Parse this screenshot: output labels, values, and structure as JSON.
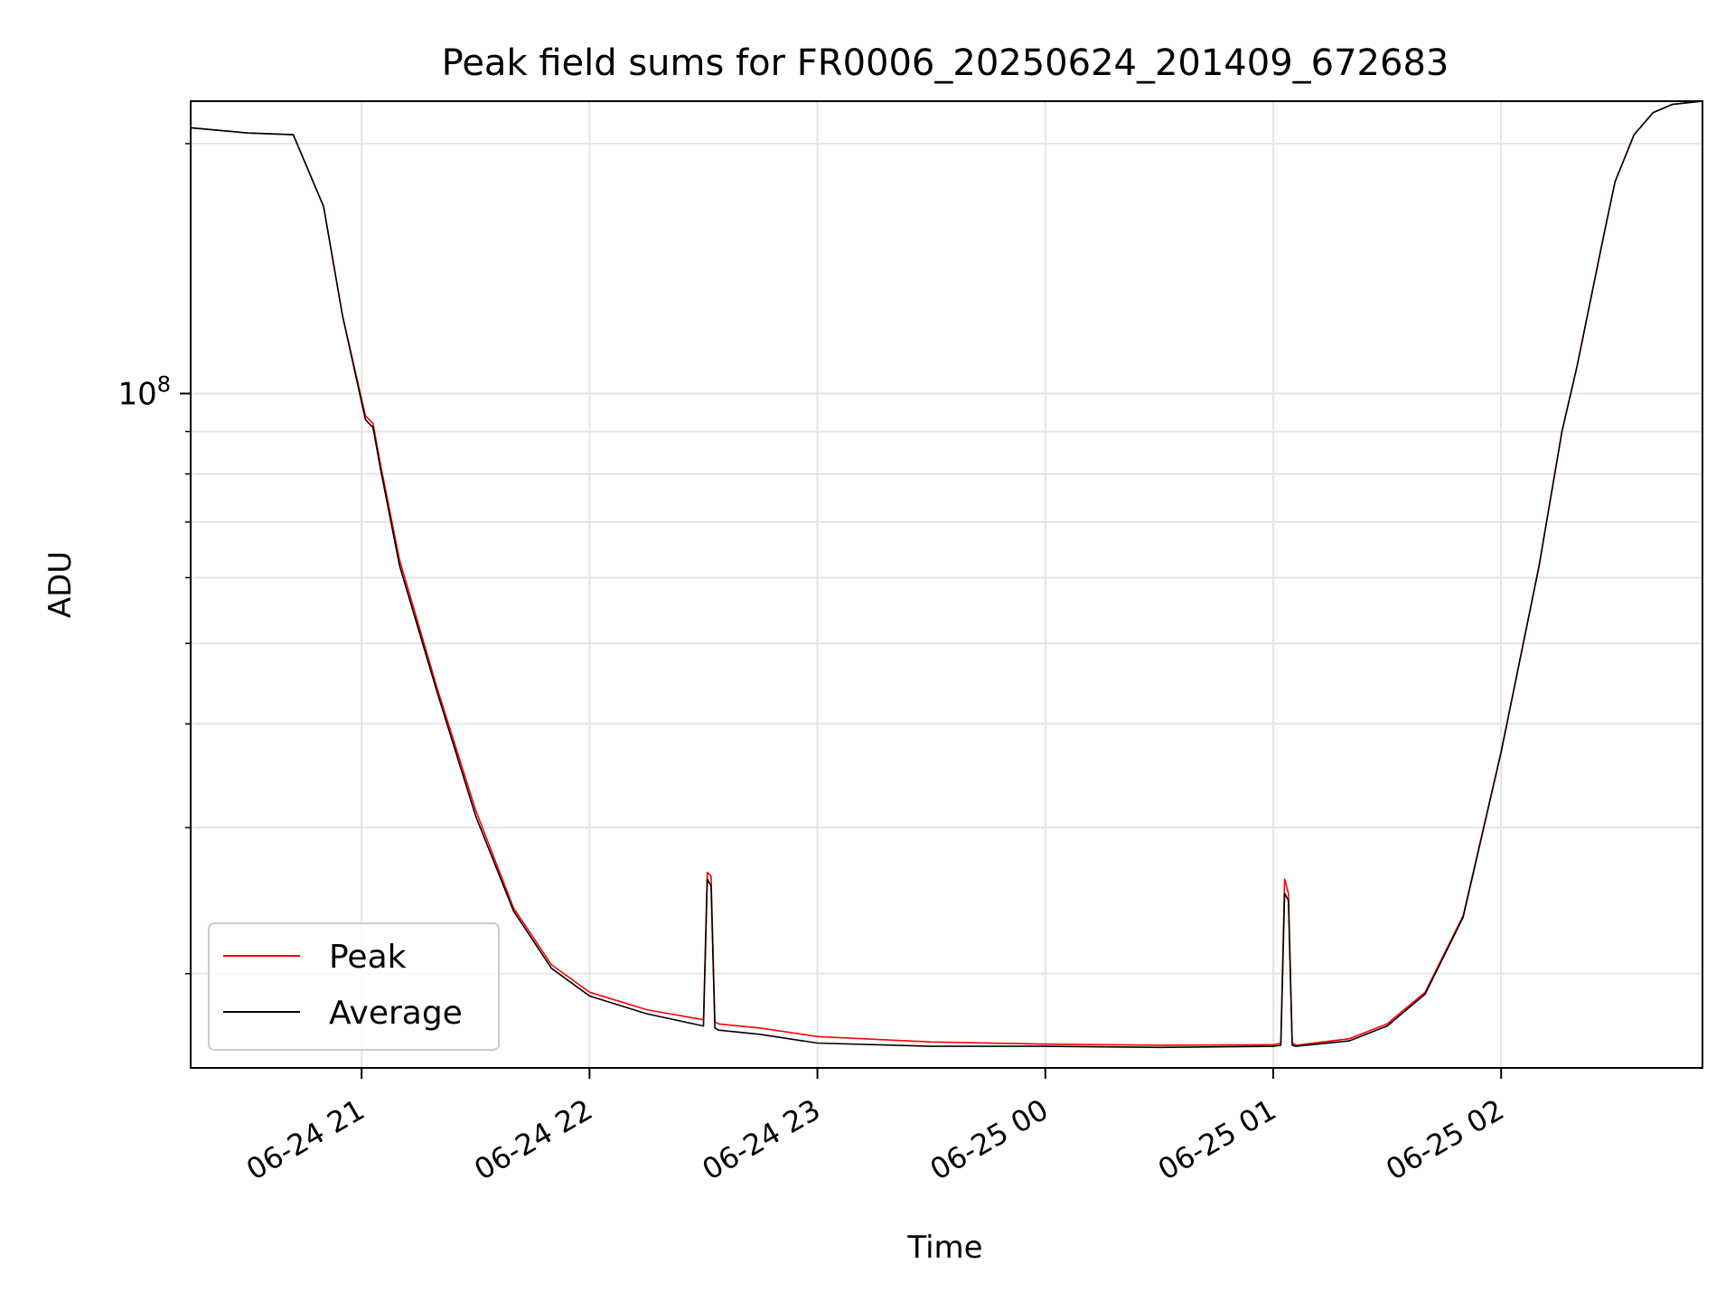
{
  "chart_data": {
    "type": "line",
    "title": "Peak field sums for FR0006_20250624_201409_672683",
    "xlabel": "Time",
    "ylabel": "ADU",
    "y_scale": "log",
    "grid": true,
    "legend_position": "lower-left",
    "xlim": [
      "2025-06-24 20:15",
      "2025-06-25 02:53"
    ],
    "ylim": [
      15400000,
      225000000
    ],
    "x_ticks": [
      {
        "x": "2025-06-24 21:00",
        "label": "06-24 21"
      },
      {
        "x": "2025-06-24 22:00",
        "label": "06-24 22"
      },
      {
        "x": "2025-06-24 23:00",
        "label": "06-24 23"
      },
      {
        "x": "2025-06-25 00:00",
        "label": "06-25 00"
      },
      {
        "x": "2025-06-25 01:00",
        "label": "06-25 01"
      },
      {
        "x": "2025-06-25 02:00",
        "label": "06-25 02"
      }
    ],
    "y_major_ticks": [
      {
        "value": 100000000,
        "label_base": "10",
        "label_exp": "8"
      }
    ],
    "y_minor_ticks": [
      20000000,
      30000000,
      40000000,
      50000000,
      60000000,
      70000000,
      80000000,
      90000000,
      200000000
    ],
    "series": [
      {
        "name": "Peak",
        "color": "#ff0000",
        "x": [
          "2025-06-24 20:15",
          "2025-06-24 20:30",
          "2025-06-24 20:42",
          "2025-06-24 20:50",
          "2025-06-24 20:55",
          "2025-06-24 21:01",
          "2025-06-24 21:03",
          "2025-06-24 21:05",
          "2025-06-24 21:10",
          "2025-06-24 21:20",
          "2025-06-24 21:30",
          "2025-06-24 21:40",
          "2025-06-24 21:50",
          "2025-06-24 22:00",
          "2025-06-24 22:15",
          "2025-06-24 22:30",
          "2025-06-24 22:31",
          "2025-06-24 22:32",
          "2025-06-24 22:33",
          "2025-06-24 22:34",
          "2025-06-24 22:45",
          "2025-06-24 23:00",
          "2025-06-24 23:30",
          "2025-06-25 00:00",
          "2025-06-25 00:30",
          "2025-06-25 01:00",
          "2025-06-25 01:02",
          "2025-06-25 01:03",
          "2025-06-25 01:04",
          "2025-06-25 01:05",
          "2025-06-25 01:06",
          "2025-06-25 01:20",
          "2025-06-25 01:30",
          "2025-06-25 01:40",
          "2025-06-25 01:50",
          "2025-06-25 02:00",
          "2025-06-25 02:10",
          "2025-06-25 02:16",
          "2025-06-25 02:20",
          "2025-06-25 02:27",
          "2025-06-25 02:30",
          "2025-06-25 02:35",
          "2025-06-25 02:40",
          "2025-06-25 02:45",
          "2025-06-25 02:53"
        ],
        "y": [
          209000000,
          206000000,
          205000000,
          168000000,
          124000000,
          94000000,
          92000000,
          82000000,
          63000000,
          44000000,
          31500000,
          24000000,
          20500000,
          19000000,
          18100000,
          17600000,
          26500000,
          26200000,
          17500000,
          17400000,
          17200000,
          16800000,
          16550000,
          16450000,
          16400000,
          16420000,
          16500000,
          26000000,
          25000000,
          16500000,
          16400000,
          16700000,
          17400000,
          19000000,
          23500000,
          37000000,
          62000000,
          90000000,
          108000000,
          155000000,
          180000000,
          205000000,
          218000000,
          223000000,
          225000000
        ]
      },
      {
        "name": "Average",
        "color": "#000000",
        "x": [
          "2025-06-24 20:15",
          "2025-06-24 20:30",
          "2025-06-24 20:42",
          "2025-06-24 20:50",
          "2025-06-24 20:55",
          "2025-06-24 21:01",
          "2025-06-24 21:03",
          "2025-06-24 21:05",
          "2025-06-24 21:10",
          "2025-06-24 21:20",
          "2025-06-24 21:30",
          "2025-06-24 21:40",
          "2025-06-24 21:50",
          "2025-06-24 22:00",
          "2025-06-24 22:15",
          "2025-06-24 22:30",
          "2025-06-24 22:31",
          "2025-06-24 22:32",
          "2025-06-24 22:33",
          "2025-06-24 22:34",
          "2025-06-24 22:45",
          "2025-06-24 23:00",
          "2025-06-24 23:30",
          "2025-06-25 00:00",
          "2025-06-25 00:30",
          "2025-06-25 01:00",
          "2025-06-25 01:02",
          "2025-06-25 01:03",
          "2025-06-25 01:04",
          "2025-06-25 01:05",
          "2025-06-25 01:06",
          "2025-06-25 01:20",
          "2025-06-25 01:30",
          "2025-06-25 01:40",
          "2025-06-25 01:50",
          "2025-06-25 02:00",
          "2025-06-25 02:10",
          "2025-06-25 02:16",
          "2025-06-25 02:20",
          "2025-06-25 02:27",
          "2025-06-25 02:30",
          "2025-06-25 02:35",
          "2025-06-25 02:40",
          "2025-06-25 02:45",
          "2025-06-25 02:53"
        ],
        "y": [
          209000000,
          206000000,
          205000000,
          168000000,
          124000000,
          93000000,
          91000000,
          81000000,
          62000000,
          43500000,
          31000000,
          23800000,
          20300000,
          18800000,
          17900000,
          17300000,
          26000000,
          25500000,
          17200000,
          17100000,
          16900000,
          16500000,
          16350000,
          16350000,
          16300000,
          16350000,
          16400000,
          25000000,
          24500000,
          16400000,
          16350000,
          16600000,
          17300000,
          18900000,
          23400000,
          37000000,
          62000000,
          90000000,
          108000000,
          155000000,
          180000000,
          205000000,
          218000000,
          223000000,
          225000000
        ]
      }
    ]
  }
}
